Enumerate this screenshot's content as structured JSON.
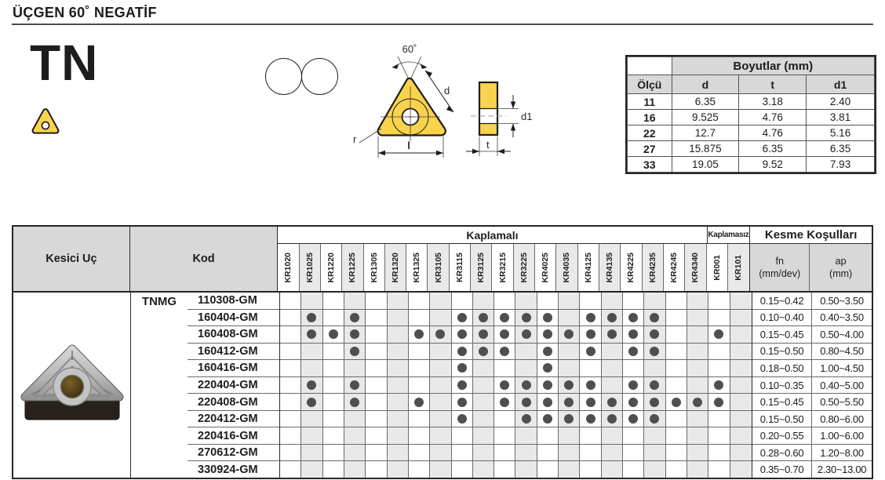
{
  "header": {
    "title": "ÜÇGEN 60˚ NEGATİF"
  },
  "product": {
    "series_label": "TN"
  },
  "colors": {
    "accent_yellow": "#F9D34D",
    "dot_gray": "#4f4f4f",
    "header_gray": "#d8d8d8",
    "column_shade": "#e9e9e9"
  },
  "drawing": {
    "angle_label": "60˚",
    "d_label": "d",
    "r_label": "r",
    "l_label": "l",
    "d1_label": "d1",
    "t_label": "t"
  },
  "dimensions": {
    "title": "Boyutlar (mm)",
    "col0": "Ölçü",
    "cols": [
      "d",
      "t",
      "d1"
    ],
    "rows": [
      {
        "size": "11",
        "d": "6.35",
        "t": "3.18",
        "d1": "2.40"
      },
      {
        "size": "16",
        "d": "9.525",
        "t": "4.76",
        "d1": "3.81"
      },
      {
        "size": "22",
        "d": "12.7",
        "t": "4.76",
        "d1": "5.16"
      },
      {
        "size": "27",
        "d": "15.875",
        "t": "6.35",
        "d1": "6.35"
      },
      {
        "size": "33",
        "d": "19.05",
        "t": "9.52",
        "d1": "7.93"
      }
    ]
  },
  "matrix": {
    "insert_header": "Kesici Uç",
    "code_header": "Kod",
    "coated_label": "Kaplamalı",
    "uncoated_label": "Kaplamasız",
    "cutting_label": "Kesme Koşulları",
    "fn_label": "fn",
    "fn_unit": "(mm/dev)",
    "ap_label": "ap",
    "ap_unit": "(mm)",
    "series_prefix": "TNMG",
    "grades_coated": [
      "KR1020",
      "KR1025",
      "KR1220",
      "KR1225",
      "KR1305",
      "KR1320",
      "KR1325",
      "KR3105",
      "KR3115",
      "KR3125",
      "KR3215",
      "KR3225",
      "KR4025",
      "KR4035",
      "KR4125",
      "KR4135",
      "KR4225",
      "KR4235",
      "KR4245",
      "KR4340"
    ],
    "grades_uncoated": [
      "KR001",
      "KR101"
    ],
    "rows": [
      {
        "code": "110308-GM",
        "grades": [],
        "fn": "0.15~0.42",
        "ap": "0.50~3.50"
      },
      {
        "code": "160404-GM",
        "grades": [
          "KR1025",
          "KR1225",
          "KR3115",
          "KR3125",
          "KR3215",
          "KR3225",
          "KR4025",
          "KR4125",
          "KR4135",
          "KR4225",
          "KR4235"
        ],
        "fn": "0.10~0.40",
        "ap": "0.40~3.50"
      },
      {
        "code": "160408-GM",
        "grades": [
          "KR1025",
          "KR1220",
          "KR1225",
          "KR1325",
          "KR3105",
          "KR3115",
          "KR3125",
          "KR3215",
          "KR3225",
          "KR4025",
          "KR4035",
          "KR4125",
          "KR4135",
          "KR4225",
          "KR4235",
          "KR001"
        ],
        "fn": "0.15~0.45",
        "ap": "0.50~4.00"
      },
      {
        "code": "160412-GM",
        "grades": [
          "KR1225",
          "KR3115",
          "KR3125",
          "KR3215",
          "KR4025",
          "KR4125",
          "KR4225",
          "KR4235"
        ],
        "fn": "0.15~0.50",
        "ap": "0.80~4.50"
      },
      {
        "code": "160416-GM",
        "grades": [
          "KR3115",
          "KR4025"
        ],
        "fn": "0.18~0.50",
        "ap": "1.00~4.50"
      },
      {
        "code": "220404-GM",
        "grades": [
          "KR1025",
          "KR1225",
          "KR3115",
          "KR3215",
          "KR3225",
          "KR4025",
          "KR4035",
          "KR4125",
          "KR4225",
          "KR4235",
          "KR001"
        ],
        "fn": "0.10~0.35",
        "ap": "0.40~5.00"
      },
      {
        "code": "220408-GM",
        "grades": [
          "KR1025",
          "KR1225",
          "KR1325",
          "KR3115",
          "KR3215",
          "KR3225",
          "KR4025",
          "KR4035",
          "KR4125",
          "KR4135",
          "KR4225",
          "KR4235",
          "KR4245",
          "KR4340",
          "KR001"
        ],
        "fn": "0.15~0.45",
        "ap": "0.50~5.50"
      },
      {
        "code": "220412-GM",
        "grades": [
          "KR3115",
          "KR3225",
          "KR4025",
          "KR4035",
          "KR4125",
          "KR4135",
          "KR4225",
          "KR4235"
        ],
        "fn": "0.15~0.50",
        "ap": "0.80~6.00"
      },
      {
        "code": "220416-GM",
        "grades": [],
        "fn": "0.20~0.55",
        "ap": "1.00~6.00"
      },
      {
        "code": "270612-GM",
        "grades": [],
        "fn": "0.28~0.60",
        "ap": "1.20~8.00"
      },
      {
        "code": "330924-GM",
        "grades": [],
        "fn": "0.35~0.70",
        "ap": "2.30~13.00"
      }
    ]
  }
}
